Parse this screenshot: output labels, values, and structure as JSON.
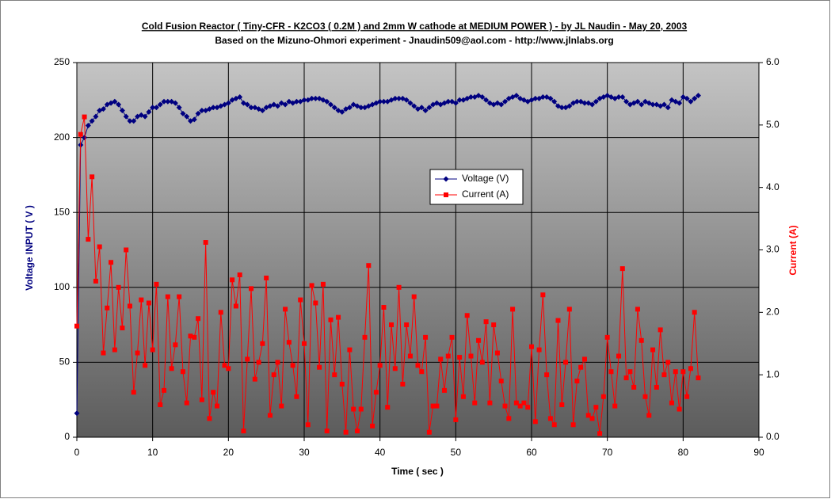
{
  "chart_data": {
    "type": "line",
    "title": "Cold Fusion Reactor ( Tiny-CFR - K2CO3 ( 0.2M ) and 2mm W cathode at MEDIUM POWER ) - by JL Naudin - May 20, 2003",
    "subtitle": "Based on the Mizuno-Ohmori experiment - Jnaudin509@aol.com - http://www.jlnlabs.org",
    "x_label": "Time ( sec )",
    "y_label": "Voltage INPUT ( V )",
    "y2_label": "Current (A)",
    "grid": true,
    "xlim": [
      0,
      90
    ],
    "xticks": [
      0,
      10,
      20,
      30,
      40,
      50,
      60,
      70,
      80,
      90
    ],
    "ylim": [
      0,
      250
    ],
    "yticks": [
      0,
      50,
      100,
      150,
      200,
      250
    ],
    "y2lim": [
      0,
      6
    ],
    "y2ticks": [
      {
        "value": 0,
        "label": "0.0"
      },
      {
        "value": 1,
        "label": "1.0"
      },
      {
        "value": 2,
        "label": "2.0"
      },
      {
        "value": 3,
        "label": "3.0"
      },
      {
        "value": 4,
        "label": "4.0"
      },
      {
        "value": 5,
        "label": "5.0"
      },
      {
        "value": 6,
        "label": "6.0"
      }
    ],
    "x": [
      0,
      0.5,
      1,
      1.5,
      2,
      2.5,
      3,
      3.5,
      4,
      4.5,
      5,
      5.5,
      6,
      6.5,
      7,
      7.5,
      8,
      8.5,
      9,
      9.5,
      10,
      10.5,
      11,
      11.5,
      12,
      12.5,
      13,
      13.5,
      14,
      14.5,
      15,
      15.5,
      16,
      16.5,
      17,
      17.5,
      18,
      18.5,
      19,
      19.5,
      20,
      20.5,
      21,
      21.5,
      22,
      22.5,
      23,
      23.5,
      24,
      24.5,
      25,
      25.5,
      26,
      26.5,
      27,
      27.5,
      28,
      28.5,
      29,
      29.5,
      30,
      30.5,
      31,
      31.5,
      32,
      32.5,
      33,
      33.5,
      34,
      34.5,
      35,
      35.5,
      36,
      36.5,
      37,
      37.5,
      38,
      38.5,
      39,
      39.5,
      40,
      40.5,
      41,
      41.5,
      42,
      42.5,
      43,
      43.5,
      44,
      44.5,
      45,
      45.5,
      46,
      46.5,
      47,
      47.5,
      48,
      48.5,
      49,
      49.5,
      50,
      50.5,
      51,
      51.5,
      52,
      52.5,
      53,
      53.5,
      54,
      54.5,
      55,
      55.5,
      56,
      56.5,
      57,
      57.5,
      58,
      58.5,
      59,
      59.5,
      60,
      60.5,
      61,
      61.5,
      62,
      62.5,
      63,
      63.5,
      64,
      64.5,
      65,
      65.5,
      66,
      66.5,
      67,
      67.5,
      68,
      68.5,
      69,
      69.5,
      70,
      70.5,
      71,
      71.5,
      72,
      72.5,
      73,
      73.5,
      74,
      74.5,
      75,
      75.5,
      76,
      76.5,
      77,
      77.5,
      78,
      78.5,
      79,
      79.5,
      80,
      80.5,
      81,
      81.5,
      82
    ],
    "series": [
      {
        "name": "Voltage (V)",
        "color": "#000080",
        "marker": "diamond",
        "values": [
          16,
          195,
          200,
          208,
          211,
          214,
          218,
          219,
          222,
          223,
          224,
          222,
          218,
          214,
          211,
          211,
          214,
          215,
          214,
          217,
          220,
          220,
          222,
          224,
          224,
          224,
          223,
          220,
          216,
          214,
          211,
          212,
          216,
          218,
          218,
          219,
          220,
          220,
          221,
          222,
          223,
          225,
          226,
          227,
          223,
          222,
          220,
          220,
          219,
          218,
          220,
          221,
          222,
          221,
          223,
          222,
          224,
          223,
          224,
          224,
          225,
          225,
          226,
          226,
          226,
          225,
          224,
          222,
          220,
          218,
          217,
          219,
          220,
          222,
          221,
          220,
          220,
          221,
          222,
          223,
          224,
          224,
          224,
          225,
          226,
          226,
          226,
          225,
          223,
          221,
          219,
          220,
          218,
          220,
          222,
          223,
          222,
          223,
          224,
          224,
          223,
          225,
          225,
          226,
          227,
          227,
          228,
          227,
          225,
          223,
          222,
          223,
          222,
          224,
          226,
          227,
          228,
          226,
          225,
          224,
          225,
          226,
          226,
          227,
          227,
          226,
          224,
          221,
          220,
          220,
          221,
          223,
          224,
          224,
          223,
          223,
          222,
          224,
          226,
          227,
          228,
          227,
          226,
          227,
          227,
          224,
          222,
          223,
          224,
          222,
          224,
          223,
          222,
          222,
          221,
          222,
          220,
          225,
          224,
          223,
          227,
          226,
          224,
          226,
          228
        ]
      },
      {
        "name": "Current (A)",
        "color": "#ff0000",
        "marker": "square",
        "axis": "y2",
        "values": [
          1.78,
          4.85,
          5.13,
          3.17,
          4.17,
          2.5,
          3.05,
          1.35,
          2.07,
          2.8,
          1.4,
          2.4,
          1.75,
          3.0,
          2.1,
          0.72,
          1.35,
          2.2,
          1.15,
          2.15,
          1.4,
          2.45,
          0.52,
          0.75,
          2.25,
          1.1,
          1.48,
          2.25,
          1.05,
          0.55,
          1.62,
          1.6,
          1.9,
          0.6,
          3.12,
          0.3,
          0.72,
          0.5,
          2.0,
          1.15,
          1.1,
          2.52,
          2.1,
          2.6,
          0.1,
          1.25,
          2.38,
          0.93,
          1.2,
          1.5,
          2.55,
          0.35,
          1.0,
          1.2,
          0.5,
          2.05,
          1.52,
          1.15,
          0.65,
          2.2,
          1.5,
          0.2,
          2.43,
          2.15,
          1.12,
          2.45,
          0.1,
          1.88,
          1.0,
          1.92,
          0.85,
          0.08,
          1.4,
          0.45,
          0.1,
          0.45,
          1.6,
          2.75,
          0.18,
          0.72,
          1.15,
          2.08,
          0.48,
          1.8,
          1.1,
          2.4,
          0.85,
          1.8,
          1.3,
          2.25,
          1.15,
          1.05,
          1.6,
          0.08,
          0.5,
          0.5,
          1.25,
          0.75,
          1.3,
          1.6,
          0.28,
          1.28,
          0.65,
          1.95,
          1.3,
          0.55,
          1.55,
          1.2,
          1.85,
          0.55,
          1.8,
          1.35,
          0.9,
          0.5,
          0.3,
          2.05,
          0.55,
          0.5,
          0.55,
          0.48,
          1.45,
          0.25,
          1.4,
          2.28,
          1.0,
          0.3,
          0.2,
          1.87,
          0.52,
          1.2,
          2.05,
          0.2,
          0.9,
          1.12,
          1.25,
          0.35,
          0.3,
          0.48,
          0.06,
          0.65,
          1.6,
          1.05,
          0.5,
          1.3,
          2.7,
          0.95,
          1.05,
          0.8,
          2.05,
          1.55,
          0.65,
          0.35,
          1.4,
          0.8,
          1.72,
          1.0,
          1.2,
          0.55,
          1.05,
          0.45,
          1.05,
          0.65,
          1.1,
          2.0,
          0.95
        ]
      }
    ]
  }
}
